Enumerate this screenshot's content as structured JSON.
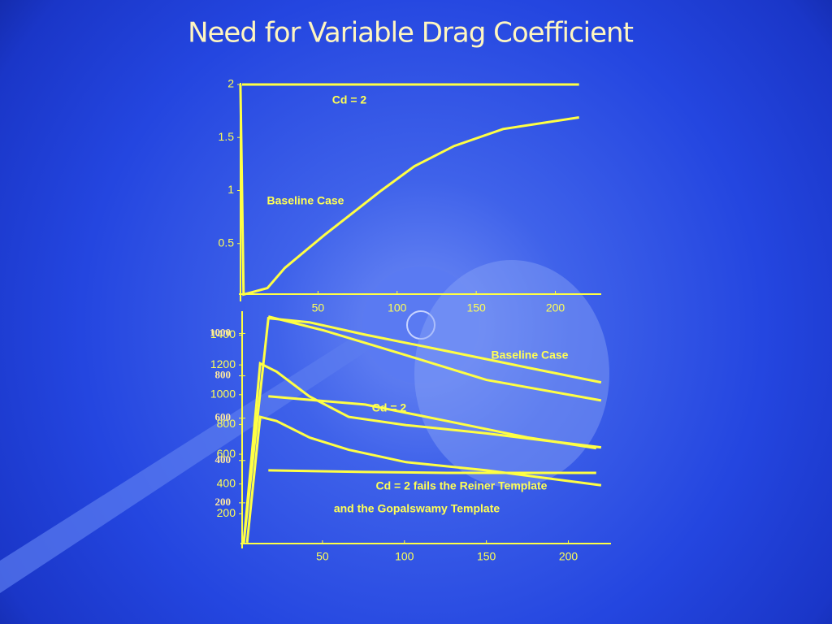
{
  "title": "Need for Variable Drag Coefficient",
  "chart_data": [
    {
      "type": "line",
      "xlim": [
        0,
        229
      ],
      "ylim": [
        0,
        2
      ],
      "xticks": [
        50,
        100,
        150,
        200
      ],
      "yticks": [
        0.5,
        1,
        1.5,
        2
      ],
      "annotations": [
        "Cd = 2",
        "Baseline Case"
      ],
      "series": [
        {
          "color": "#ffff44",
          "x": [
            2,
            215
          ],
          "values": [
            2,
            2
          ]
        },
        {
          "color": "#ffff44",
          "x": [
            1,
            3,
            8,
            18,
            29,
            54,
            90,
            111,
            136,
            167,
            215
          ],
          "values": [
            2,
            0.02,
            0.04,
            0.08,
            0.27,
            0.58,
            1.0,
            1.23,
            1.42,
            1.58,
            1.69
          ]
        }
      ]
    },
    {
      "type": "line",
      "xlim": [
        0,
        226
      ],
      "ylim": [
        0,
        1550
      ],
      "y2lim": [
        0,
        1090
      ],
      "xticks": [
        50,
        100,
        150,
        200
      ],
      "yticks": [
        200,
        400,
        600,
        800,
        1000,
        1200,
        1400
      ],
      "y2ticks": [
        200,
        400,
        600,
        800,
        1000
      ],
      "annotations": [
        "Baseline Case",
        "Cd = 2",
        "Cd = 2 fails the Reiner Template",
        "and the Gopalswamy Template"
      ],
      "series": [
        {
          "color": "#ffff44",
          "x": [
            2,
            17,
            42,
            76,
            126,
            175,
            220
          ],
          "values": [
            6,
            1514,
            1486,
            1403,
            1293,
            1182,
            1083
          ]
        },
        {
          "color": "#ffff44",
          "x": [
            17,
            51,
            101,
            150,
            220
          ],
          "values": [
            1525,
            1431,
            1265,
            1099,
            961
          ]
        },
        {
          "color": "#ffff44",
          "x": [
            2,
            12,
            22,
            42,
            66,
            101,
            150,
            220
          ],
          "values": [
            6,
            1210,
            1155,
            989,
            851,
            796,
            740,
            646
          ]
        },
        {
          "color": "#ffff44",
          "x": [
            17,
            76,
            126,
            175,
            217
          ],
          "values": [
            989,
            934,
            823,
            713,
            641
          ]
        },
        {
          "color": "#ffff44",
          "x": [
            4,
            12,
            22,
            42,
            66,
            101,
            150,
            220
          ],
          "values": [
            6,
            851,
            823,
            713,
            630,
            547,
            492,
            392
          ]
        },
        {
          "color": "#ffff44",
          "x": [
            17,
            76,
            126,
            217
          ],
          "values": [
            492,
            481,
            475,
            475
          ]
        }
      ]
    }
  ]
}
